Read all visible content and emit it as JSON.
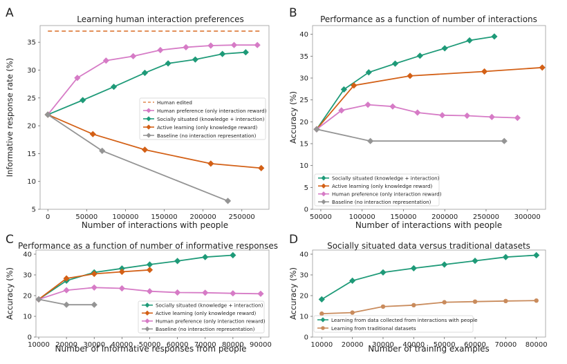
{
  "chart_data": [
    {
      "panel_letter": "A",
      "type": "line",
      "title": "Learning human interaction preferences",
      "xlabel": "Number of interactions with people",
      "ylabel": "Informative response rate (%)",
      "xlim": [
        -10000,
        285000
      ],
      "ylim": [
        5,
        38
      ],
      "xticks": [
        0,
        50000,
        100000,
        150000,
        200000,
        250000
      ],
      "yticks": [
        5,
        10,
        15,
        20,
        25,
        30,
        35
      ],
      "grid": false,
      "legend_position": "center-right",
      "series": [
        {
          "name": "Human edited",
          "color": "#e0884d",
          "style": "dashed",
          "marker": "none",
          "x": [
            0,
            275000
          ],
          "y": [
            37,
            37
          ]
        },
        {
          "name": "Human preference (only interaction reward)",
          "color": "#d67bc6",
          "marker": "diamond",
          "x": [
            0,
            38000,
            75000,
            110000,
            145000,
            178000,
            210000,
            240000,
            270000
          ],
          "y": [
            22,
            28.6,
            31.7,
            32.5,
            33.6,
            34.1,
            34.4,
            34.5,
            34.5
          ]
        },
        {
          "name": "Socially situated (knowledge + interaction)",
          "color": "#1e9a78",
          "marker": "diamond",
          "x": [
            0,
            45000,
            85000,
            125000,
            155000,
            190000,
            225000,
            255000
          ],
          "y": [
            22,
            24.6,
            27,
            29.5,
            31.2,
            31.9,
            32.9,
            33.2
          ]
        },
        {
          "name": "Active learning (only knowledge reward)",
          "color": "#d36016",
          "marker": "diamond",
          "x": [
            0,
            58000,
            125000,
            210000,
            275000
          ],
          "y": [
            22,
            18.5,
            15.7,
            13.2,
            12.4
          ]
        },
        {
          "name": "Baseline (no interaction representation)",
          "color": "#949494",
          "marker": "diamond",
          "x": [
            0,
            70000,
            232000
          ],
          "y": [
            22,
            15.5,
            6.5
          ]
        }
      ]
    },
    {
      "panel_letter": "B",
      "type": "line",
      "title": "Performance as a function of number of interactions",
      "xlabel": "Number of interactions with people",
      "ylabel": "Accuracy (%)",
      "xlim": [
        40000,
        322000
      ],
      "ylim": [
        0,
        42
      ],
      "xticks": [
        50000,
        100000,
        150000,
        200000,
        250000,
        300000
      ],
      "yticks": [
        0,
        5,
        10,
        15,
        20,
        25,
        30,
        35,
        40
      ],
      "grid": false,
      "legend_position": "lower-left",
      "series": [
        {
          "name": "Socially situated (knowledge + interaction)",
          "color": "#1e9a78",
          "marker": "diamond",
          "x": [
            45000,
            78000,
            108000,
            140000,
            170000,
            200000,
            230000,
            260000
          ],
          "y": [
            18.3,
            27.4,
            31.3,
            33.3,
            35.1,
            36.8,
            38.6,
            39.5
          ]
        },
        {
          "name": "Active learning (only knowledge reward)",
          "color": "#d36016",
          "marker": "diamond",
          "x": [
            45000,
            90000,
            158000,
            248000,
            318000
          ],
          "y": [
            18.3,
            28.3,
            30.5,
            31.5,
            32.4
          ]
        },
        {
          "name": "Human preference (only interaction reward)",
          "color": "#d67bc6",
          "marker": "diamond",
          "x": [
            45000,
            75000,
            107000,
            137000,
            167000,
            197000,
            227000,
            257000,
            288000
          ],
          "y": [
            18.3,
            22.6,
            23.9,
            23.5,
            22.1,
            21.5,
            21.4,
            21.1,
            20.9
          ]
        },
        {
          "name": "Baseline (no interaction representation)",
          "color": "#949494",
          "marker": "diamond",
          "x": [
            45000,
            110000,
            272000
          ],
          "y": [
            18.3,
            15.6,
            15.6
          ]
        }
      ]
    },
    {
      "panel_letter": "C",
      "type": "line",
      "title": "Performance as a function of number of informative responses",
      "xlabel": "Number of informative responses from people",
      "ylabel": "Accuracy (%)",
      "xlim": [
        9000,
        93000
      ],
      "ylim": [
        0,
        42
      ],
      "xticks": [
        10000,
        20000,
        30000,
        40000,
        50000,
        60000,
        70000,
        80000,
        90000
      ],
      "yticks": [
        0,
        10,
        20,
        30,
        40
      ],
      "grid": false,
      "legend_position": "lower-right",
      "series": [
        {
          "name": "Socially situated (knowledge + interaction)",
          "color": "#1e9a78",
          "marker": "diamond",
          "x": [
            10000,
            20000,
            30000,
            40000,
            50000,
            60000,
            70000,
            80000
          ],
          "y": [
            18.2,
            27.2,
            31.2,
            33.1,
            35.0,
            36.7,
            38.6,
            39.5
          ]
        },
        {
          "name": "Active learning (only knowledge reward)",
          "color": "#d36016",
          "marker": "diamond",
          "x": [
            10000,
            20000,
            30000,
            40000,
            50000
          ],
          "y": [
            18.2,
            28.3,
            30.5,
            31.5,
            32.4
          ]
        },
        {
          "name": "Human preference (only interaction reward)",
          "color": "#d67bc6",
          "marker": "diamond",
          "x": [
            10000,
            20000,
            30000,
            40000,
            50000,
            60000,
            70000,
            80000,
            90000
          ],
          "y": [
            18.2,
            22.6,
            23.9,
            23.5,
            22.1,
            21.5,
            21.4,
            21.1,
            20.9
          ]
        },
        {
          "name": "Baseline (no interaction representation)",
          "color": "#949494",
          "marker": "diamond",
          "x": [
            10000,
            20000,
            30000
          ],
          "y": [
            18.2,
            15.6,
            15.6
          ]
        }
      ]
    },
    {
      "panel_letter": "D",
      "type": "line",
      "title": "Socially situated data versus traditional datasets",
      "xlabel": "Number of training examples",
      "ylabel": "Accuracy (%)",
      "xlim": [
        7000,
        83000
      ],
      "ylim": [
        0,
        42
      ],
      "xticks": [
        10000,
        20000,
        30000,
        40000,
        50000,
        60000,
        70000,
        80000
      ],
      "yticks": [
        0,
        10,
        20,
        30,
        40
      ],
      "grid": false,
      "legend_position": "lower-left",
      "series": [
        {
          "name": "Learning from data collected from interactions with people",
          "color": "#1e9a78",
          "marker": "diamond",
          "x": [
            10000,
            20000,
            30000,
            40000,
            50000,
            60000,
            70000,
            80000
          ],
          "y": [
            18.2,
            27.2,
            31.2,
            33.2,
            35.0,
            36.8,
            38.6,
            39.5
          ]
        },
        {
          "name": "Learning from traditional datasets",
          "color": "#c98b5c",
          "marker": "circle",
          "x": [
            10000,
            20000,
            30000,
            40000,
            50000,
            60000,
            70000,
            80000
          ],
          "y": [
            11.3,
            11.8,
            14.7,
            15.4,
            16.8,
            17.1,
            17.4,
            17.6
          ]
        }
      ]
    }
  ]
}
